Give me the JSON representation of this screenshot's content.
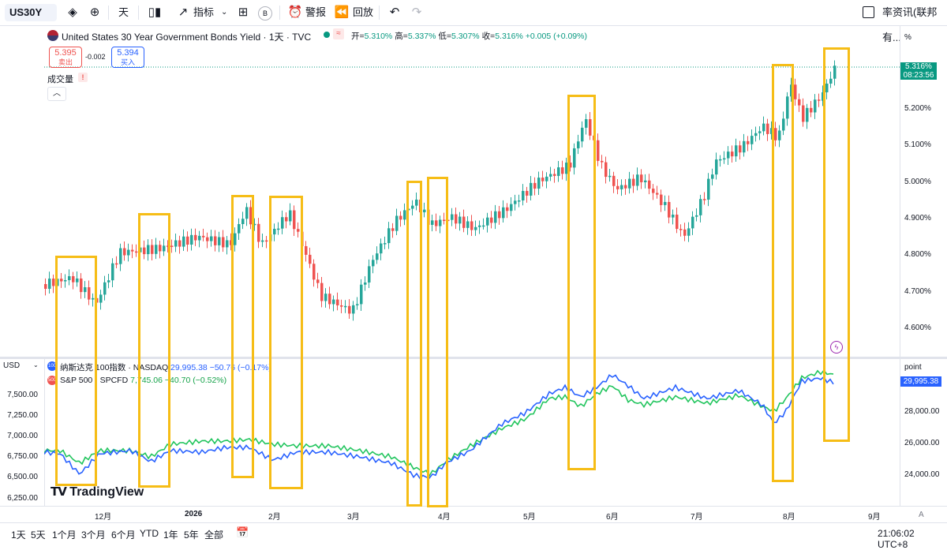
{
  "toolbar": {
    "symbol": "US30Y",
    "interval": "天",
    "indicators": "指标",
    "alerts": "警报",
    "replay": "回放",
    "badge": "B",
    "right_label": "率资讯(联邦有..."
  },
  "legend": {
    "title": "United States 30 Year Government Bonds Yield · 1天 · TVC",
    "open_label": "开=",
    "open": "5.310%",
    "high_label": "高=",
    "high": "5.337%",
    "low_label": "低=",
    "low": "5.307%",
    "close_label": "收=",
    "close": "5.316%",
    "change": "+0.005 (+0.09%)",
    "sell_price": "5.395",
    "sell_label": "卖出",
    "spread": "-0.002",
    "buy_price": "5.394",
    "buy_label": "买入",
    "volume_label": "成交量"
  },
  "main_axis": {
    "unit": "%",
    "last_price": "5.316%",
    "countdown": "08:23:56",
    "ticks": [
      "5.200%",
      "5.100%",
      "5.000%",
      "4.900%",
      "4.800%",
      "4.700%",
      "4.600%"
    ]
  },
  "lower_pane": {
    "currency": "USD",
    "unit": "point",
    "series1": {
      "icon": "100",
      "name": "纳斯达克 100指数 · NASDAQ",
      "value": "29,995.38",
      "change": "−50.76 (−0.17%)"
    },
    "series2": {
      "icon": "500",
      "name": "S&P 500 · SPCFD",
      "value": "7,745.06",
      "change": "−40.70 (−0.52%)"
    },
    "right_last": "29,995.38",
    "right_ticks": [
      "28,000.00",
      "26,000.00",
      "24,000.00"
    ],
    "left_ticks": [
      "7,500.00",
      "7,250.00",
      "7,000.00",
      "6,750.00",
      "6,500.00",
      "6,250.00"
    ],
    "logo": "TradingView"
  },
  "date_axis": [
    "12月",
    "2026",
    "2月",
    "3月",
    "4月",
    "5月",
    "6月",
    "7月",
    "8月",
    "9月"
  ],
  "bottom_bar": {
    "ranges": [
      "1天",
      "5天",
      "1个月",
      "3个月",
      "6个月",
      "YTD",
      "1年",
      "5年",
      "全部"
    ],
    "clock": "21:06:02 UTC+8",
    "auto": "A"
  },
  "colors": {
    "up": "#26a69a",
    "down": "#ef5350",
    "nasdaq": "#2962ff",
    "spx": "#22c55e",
    "highlight": "#f6bd16",
    "last": "#089981"
  }
}
